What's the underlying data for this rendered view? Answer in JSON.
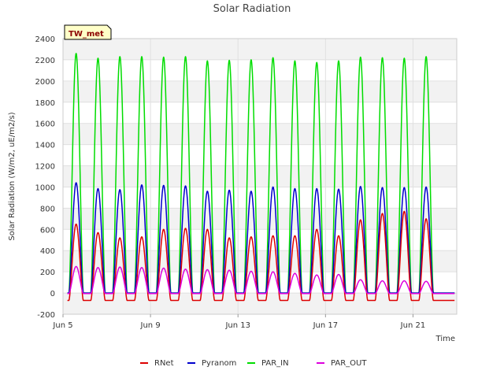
{
  "chart_data": {
    "type": "line",
    "title": "Solar Radiation",
    "xlabel": "Time",
    "ylabel": "Solar Radiation (W/m2, uE/m2/s)",
    "ylim": [
      -200,
      2400
    ],
    "xlim_day": [
      5,
      23
    ],
    "yticks": [
      -200,
      0,
      200,
      400,
      600,
      800,
      1000,
      1200,
      1400,
      1600,
      1800,
      2000,
      2200,
      2400
    ],
    "xticks": [
      {
        "day": 5,
        "label": "Jun 5"
      },
      {
        "day": 9,
        "label": "Jun 9"
      },
      {
        "day": 13,
        "label": "Jun 13"
      },
      {
        "day": 17,
        "label": "Jun 17"
      },
      {
        "day": 21,
        "label": "Jun 21"
      }
    ],
    "grid": true,
    "legend_position": "bottom-center",
    "site_tag": "TW_met",
    "peak_days": [
      5.6,
      6.6,
      7.6,
      8.6,
      9.6,
      10.6,
      11.6,
      12.6,
      13.6,
      14.6,
      15.6,
      16.6,
      17.6,
      18.6,
      19.6,
      20.6,
      21.6,
      22.6
    ],
    "series": [
      {
        "name": "RNet",
        "color": "#dd0000",
        "night": -70,
        "peaks": [
          650,
          570,
          520,
          530,
          600,
          610,
          600,
          520,
          530,
          540,
          540,
          600,
          540,
          690,
          750,
          770,
          700,
          0
        ]
      },
      {
        "name": "Pyranom",
        "color": "#0000cc",
        "night": 0,
        "peaks": [
          1040,
          985,
          975,
          1020,
          1015,
          1010,
          960,
          970,
          960,
          1000,
          985,
          985,
          980,
          1005,
          995,
          995,
          1000,
          0
        ]
      },
      {
        "name": "PAR_IN",
        "color": "#00dd00",
        "night": 0,
        "peaks": [
          2260,
          2215,
          2230,
          2230,
          2225,
          2230,
          2190,
          2195,
          2200,
          2220,
          2190,
          2175,
          2190,
          2225,
          2220,
          2215,
          2230,
          0
        ]
      },
      {
        "name": "PAR_OUT",
        "color": "#dd00dd",
        "night": -5,
        "peaks": [
          250,
          240,
          245,
          240,
          235,
          225,
          220,
          215,
          205,
          200,
          185,
          170,
          175,
          125,
          115,
          115,
          110,
          0
        ]
      }
    ]
  }
}
